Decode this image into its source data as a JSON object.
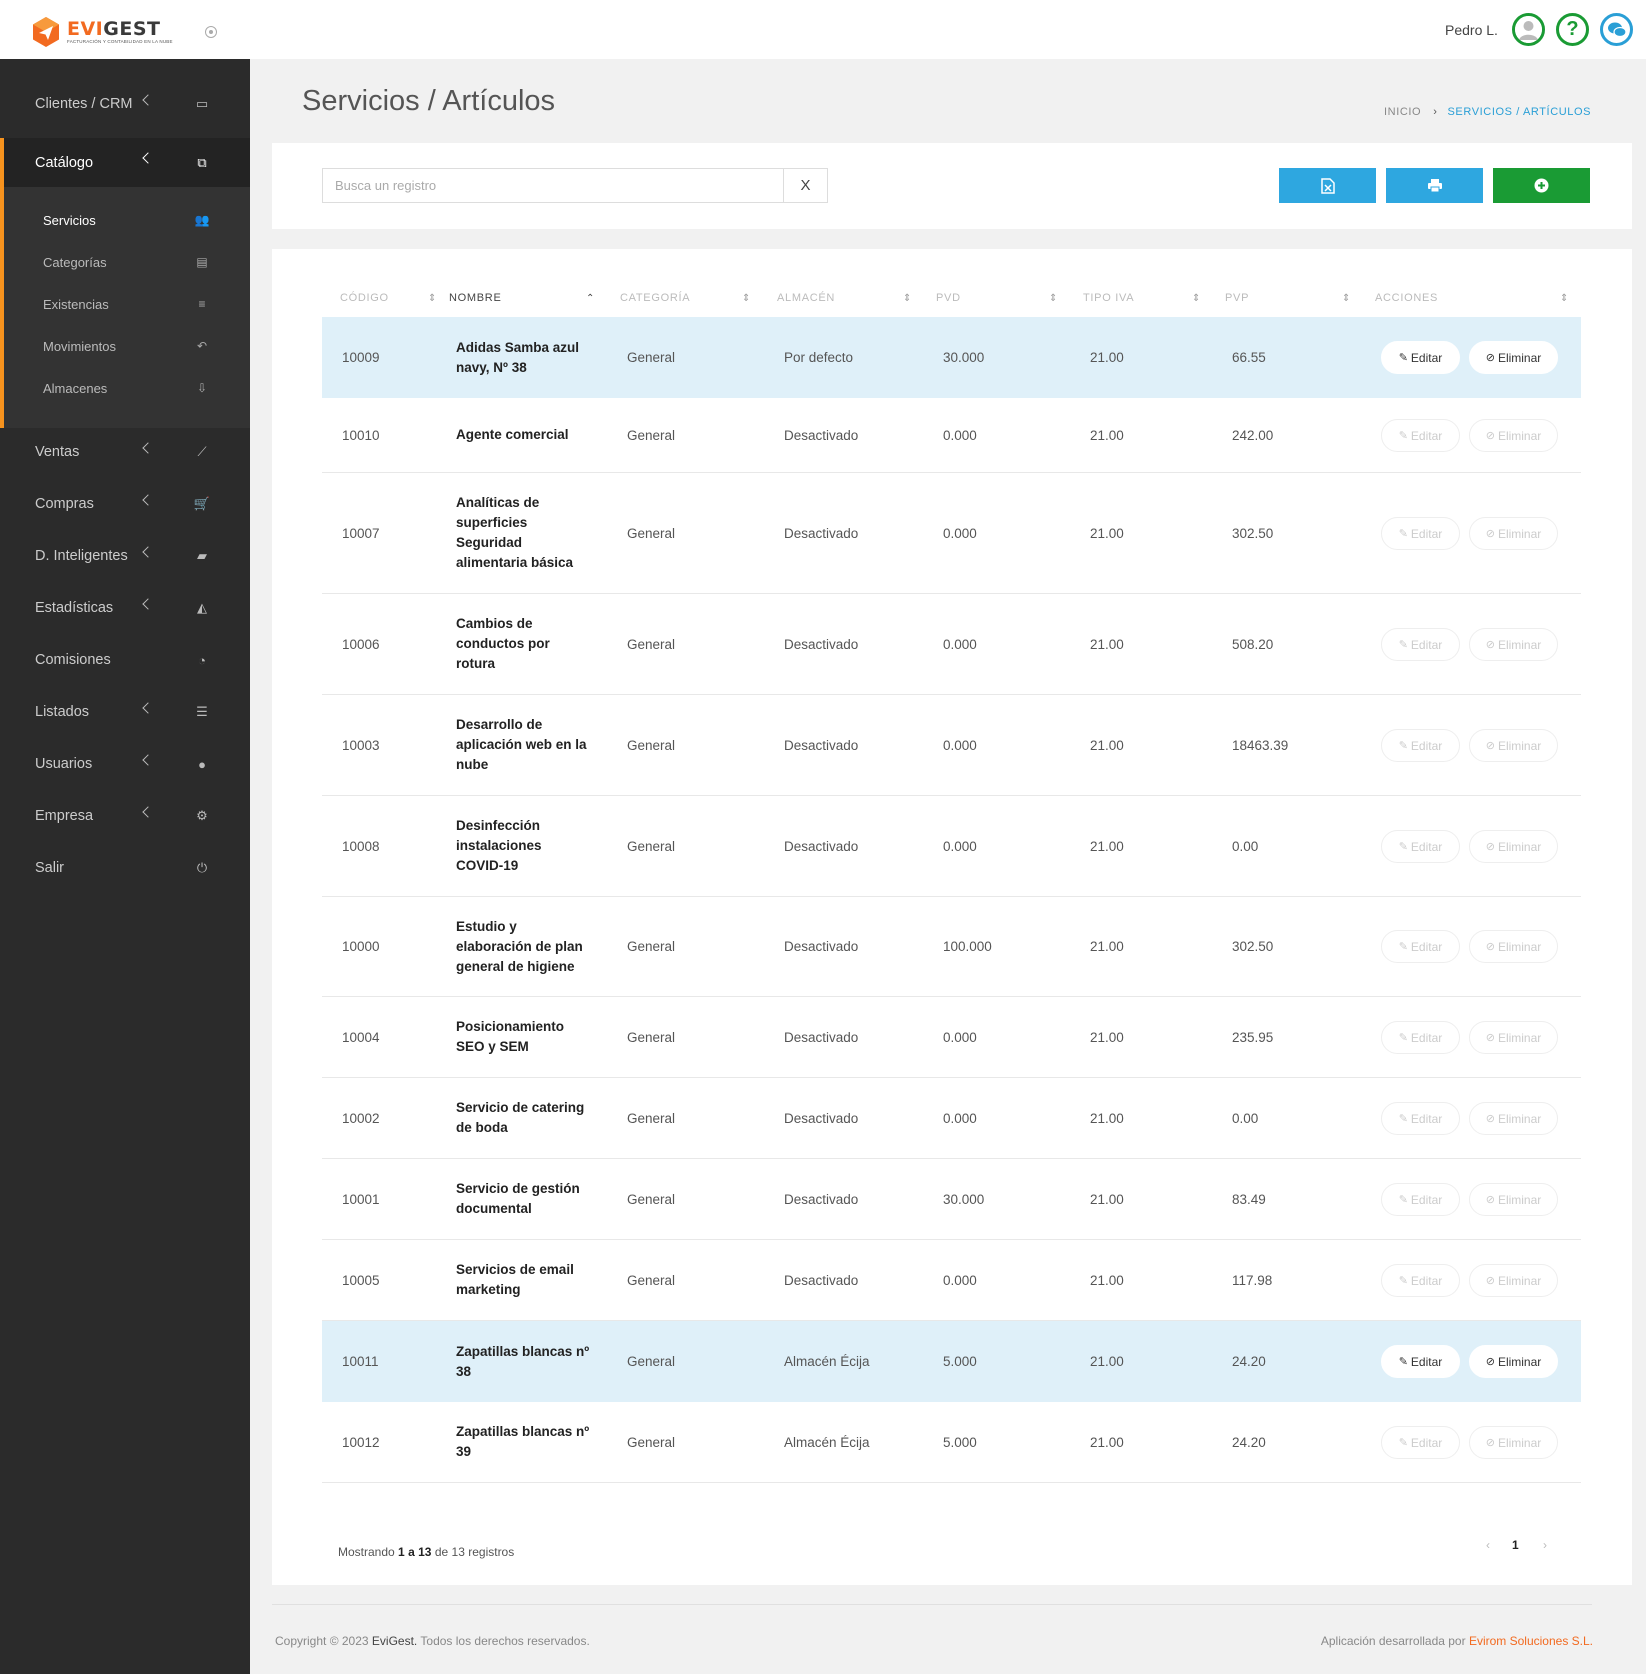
{
  "app": {
    "logo_text_a": "EVI",
    "logo_text_b": "GEST",
    "logo_tagline": "FACTURACIÓN Y CONTABILIDAD EN LA NUBE",
    "brand_orange": "#f26a20",
    "accent_blue": "#2a9fd6",
    "accent_green": "#1a9b34"
  },
  "header": {
    "username": "Pedro L.",
    "help_glyph": "?",
    "avatar_icon": "user-avatar-icon",
    "chat_icon": "chat-icon"
  },
  "sidebar": {
    "items": [
      {
        "label": "Clientes / CRM",
        "icon": "address-card-icon",
        "glyph": "▭"
      },
      {
        "label": "Catálogo",
        "icon": "copy-icon",
        "glyph": "⧉"
      },
      {
        "label": "Ventas",
        "icon": "line-chart-icon",
        "glyph": "⟋"
      },
      {
        "label": "Compras",
        "icon": "cart-icon",
        "glyph": "🛒"
      },
      {
        "label": "D. Inteligentes",
        "icon": "folder-open-icon",
        "glyph": "▰"
      },
      {
        "label": "Estadísticas",
        "icon": "area-chart-icon",
        "glyph": "◭"
      },
      {
        "label": "Comisiones",
        "icon": "pie-chart-icon",
        "glyph": "◔"
      },
      {
        "label": "Listados",
        "icon": "list-icon",
        "glyph": "☰"
      },
      {
        "label": "Usuarios",
        "icon": "user-icon",
        "glyph": "●"
      },
      {
        "label": "Empresa",
        "icon": "gear-icon",
        "glyph": "⚙"
      },
      {
        "label": "Salir",
        "icon": "power-icon",
        "glyph": "⏻"
      }
    ],
    "submenu": [
      {
        "label": "Servicios",
        "icon": "users-icon",
        "glyph": "👥"
      },
      {
        "label": "Categorías",
        "icon": "archive-icon",
        "glyph": "▤"
      },
      {
        "label": "Existencias",
        "icon": "list-ol-icon",
        "glyph": "≡"
      },
      {
        "label": "Movimientos",
        "icon": "reply-icon",
        "glyph": "↶"
      },
      {
        "label": "Almacenes",
        "icon": "download-icon",
        "glyph": "⇩"
      }
    ]
  },
  "page": {
    "title": "Servicios / Artículos",
    "breadcrumb_home": "INICIO",
    "breadcrumb_sep": "›",
    "breadcrumb_current": "SERVICIOS / ARTÍCULOS"
  },
  "toolbar": {
    "search_placeholder": "Busca un registro",
    "search_value": "",
    "clear_label": "X",
    "excel_icon": "file-excel-icon",
    "print_icon": "print-icon",
    "add_icon": "plus-circle-icon"
  },
  "table": {
    "columns": [
      "CÓDIGO",
      "NOMBRE",
      "CATEGORÍA",
      "ALMACÉN",
      "PVD",
      "TIPO IVA",
      "PVP",
      "ACCIONES"
    ],
    "edit_label": "Editar",
    "delete_label": "Eliminar",
    "rows": [
      {
        "codigo": "10009",
        "nombre": "Adidas Samba azul navy, Nº 38",
        "categoria": "General",
        "almacen": "Por defecto",
        "pvd": "30.000",
        "iva": "21.00",
        "pvp": "66.55",
        "highlight": true
      },
      {
        "codigo": "10010",
        "nombre": "Agente comercial",
        "categoria": "General",
        "almacen": "Desactivado",
        "pvd": "0.000",
        "iva": "21.00",
        "pvp": "242.00",
        "highlight": false
      },
      {
        "codigo": "10007",
        "nombre": "Analíticas de superficies Seguridad alimentaria básica",
        "categoria": "General",
        "almacen": "Desactivado",
        "pvd": "0.000",
        "iva": "21.00",
        "pvp": "302.50",
        "highlight": false
      },
      {
        "codigo": "10006",
        "nombre": "Cambios de conductos por rotura",
        "categoria": "General",
        "almacen": "Desactivado",
        "pvd": "0.000",
        "iva": "21.00",
        "pvp": "508.20",
        "highlight": false
      },
      {
        "codigo": "10003",
        "nombre": "Desarrollo de aplicación web en la nube",
        "categoria": "General",
        "almacen": "Desactivado",
        "pvd": "0.000",
        "iva": "21.00",
        "pvp": "18463.39",
        "highlight": false
      },
      {
        "codigo": "10008",
        "nombre": "Desinfección instalaciones COVID-19",
        "categoria": "General",
        "almacen": "Desactivado",
        "pvd": "0.000",
        "iva": "21.00",
        "pvp": "0.00",
        "highlight": false
      },
      {
        "codigo": "10000",
        "nombre": "Estudio y elaboración de plan general de higiene",
        "categoria": "General",
        "almacen": "Desactivado",
        "pvd": "100.000",
        "iva": "21.00",
        "pvp": "302.50",
        "highlight": false
      },
      {
        "codigo": "10004",
        "nombre": "Posicionamiento SEO y SEM",
        "categoria": "General",
        "almacen": "Desactivado",
        "pvd": "0.000",
        "iva": "21.00",
        "pvp": "235.95",
        "highlight": false
      },
      {
        "codigo": "10002",
        "nombre": "Servicio de catering de boda",
        "categoria": "General",
        "almacen": "Desactivado",
        "pvd": "0.000",
        "iva": "21.00",
        "pvp": "0.00",
        "highlight": false
      },
      {
        "codigo": "10001",
        "nombre": "Servicio de gestión documental",
        "categoria": "General",
        "almacen": "Desactivado",
        "pvd": "30.000",
        "iva": "21.00",
        "pvp": "83.49",
        "highlight": false
      },
      {
        "codigo": "10005",
        "nombre": "Servicios de email marketing",
        "categoria": "General",
        "almacen": "Desactivado",
        "pvd": "0.000",
        "iva": "21.00",
        "pvp": "117.98",
        "highlight": false
      },
      {
        "codigo": "10011",
        "nombre": "Zapatillas blancas nº 38",
        "categoria": "General",
        "almacen": "Almacén Écija",
        "pvd": "5.000",
        "iva": "21.00",
        "pvp": "24.20",
        "highlight": true
      },
      {
        "codigo": "10012",
        "nombre": "Zapatillas blancas nº 39",
        "categoria": "General",
        "almacen": "Almacén Écija",
        "pvd": "5.000",
        "iva": "21.00",
        "pvp": "24.20",
        "highlight": false
      }
    ],
    "info_prefix": "Mostrando",
    "info_from": "1",
    "info_a": "a",
    "info_to": "13",
    "info_de": "de",
    "info_total": "13",
    "info_suffix": "registros",
    "pager_prev": "‹",
    "pager_page": "1",
    "pager_next": "›"
  },
  "footer": {
    "copyright": "Copyright © 2023",
    "copyright_brand": "EviGest.",
    "copyright_rest": "Todos los derechos reservados.",
    "credit": "Aplicación desarrollada por",
    "credit_brand": "Evirom Soluciones S.L."
  }
}
